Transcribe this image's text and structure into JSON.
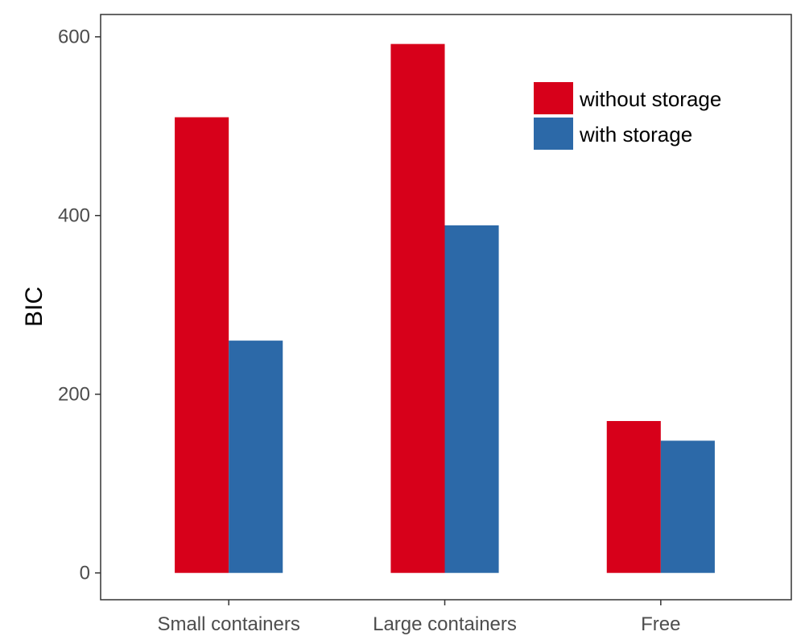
{
  "chart_data": {
    "type": "bar",
    "title": "",
    "xlabel": "",
    "ylabel": "BIC",
    "categories": [
      "Small containers",
      "Large containers",
      "Free"
    ],
    "series": [
      {
        "name": "without storage",
        "color": "#d7001a",
        "values": [
          510,
          592,
          170
        ]
      },
      {
        "name": "with storage",
        "color": "#2c69a8",
        "values": [
          260,
          389,
          148
        ]
      }
    ],
    "ylim": [
      -30,
      625
    ],
    "yticks": [
      0,
      200,
      400,
      600
    ],
    "grid": false,
    "legend_position": "top-right"
  }
}
